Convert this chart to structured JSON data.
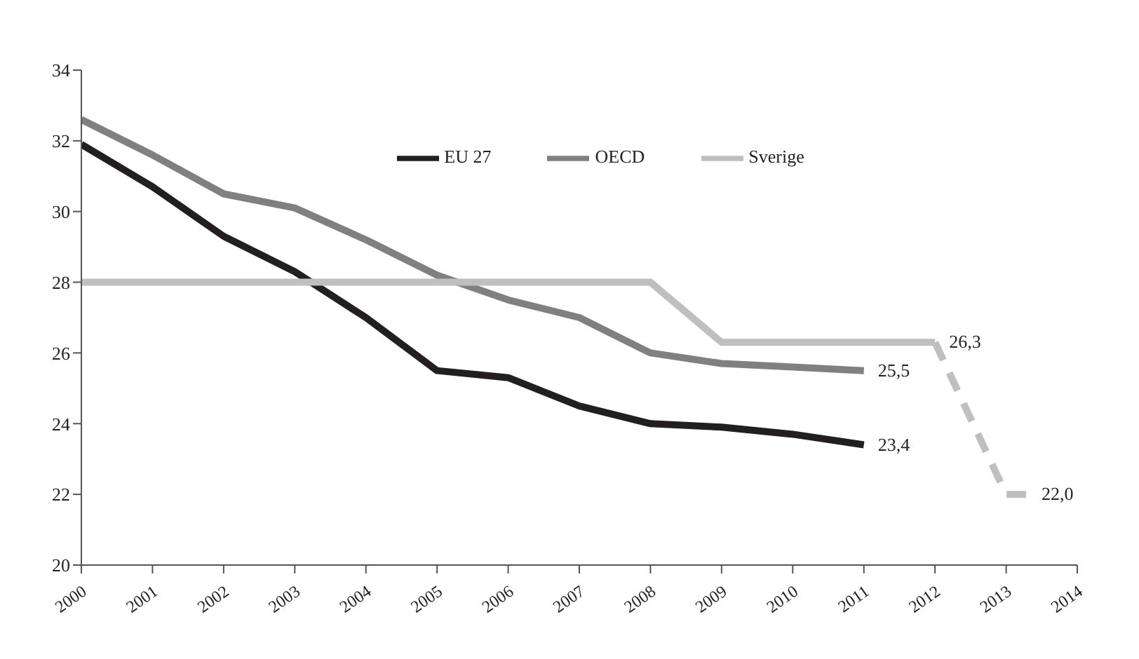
{
  "chart_data": {
    "type": "line",
    "xlim": [
      2000,
      2014
    ],
    "xticks": [
      2000,
      2001,
      2002,
      2003,
      2004,
      2005,
      2006,
      2007,
      2008,
      2009,
      2010,
      2011,
      2012,
      2013,
      2014
    ],
    "ylim": [
      20,
      34
    ],
    "yticks": [
      20,
      22,
      24,
      26,
      28,
      30,
      32,
      34
    ],
    "legend": "top",
    "marker": "none",
    "series": [
      {
        "name": "EU 27",
        "color": "#231f20",
        "x": [
          2000,
          2001,
          2002,
          2003,
          2004,
          2005,
          2006,
          2007,
          2008,
          2009,
          2010,
          2011
        ],
        "values": [
          31.9,
          30.7,
          29.3,
          28.3,
          27.0,
          25.5,
          25.3,
          24.5,
          24.0,
          23.9,
          23.7,
          23.4
        ],
        "value_labels": [
          null,
          null,
          null,
          null,
          null,
          null,
          null,
          null,
          null,
          null,
          null,
          "23,4"
        ]
      },
      {
        "name": "OECD",
        "color": "#808080",
        "x": [
          2000,
          2001,
          2002,
          2003,
          2004,
          2005,
          2006,
          2007,
          2008,
          2009,
          2010,
          2011
        ],
        "values": [
          32.6,
          31.6,
          30.5,
          30.1,
          29.2,
          28.2,
          27.5,
          27.0,
          26.0,
          25.7,
          25.6,
          25.5
        ],
        "value_labels": [
          null,
          null,
          null,
          null,
          null,
          null,
          null,
          null,
          null,
          null,
          null,
          "25,5"
        ]
      },
      {
        "name": "Sverige",
        "color": "#bfbfbf",
        "x": [
          2000,
          2001,
          2002,
          2003,
          2004,
          2005,
          2006,
          2007,
          2008,
          2009,
          2010,
          2011,
          2012
        ],
        "values": [
          28,
          28,
          28,
          28,
          28,
          28,
          28,
          28,
          28,
          26.3,
          26.3,
          26.3,
          26.3
        ],
        "value_labels": [
          null,
          null,
          null,
          null,
          null,
          null,
          null,
          null,
          null,
          null,
          null,
          null,
          "26,3"
        ]
      },
      {
        "color": "#bfbfbf",
        "line_style": "dashed",
        "x": [
          2012,
          2013,
          2013.3
        ],
        "values": [
          26.3,
          22.0,
          22.0
        ],
        "value_labels": [
          null,
          null,
          "22,0"
        ]
      }
    ]
  }
}
